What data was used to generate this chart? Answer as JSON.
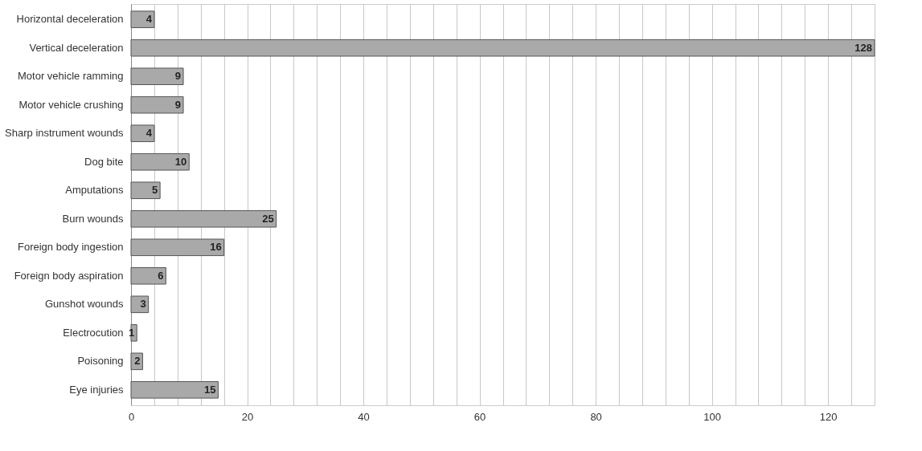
{
  "chart_data": {
    "type": "bar",
    "orientation": "horizontal",
    "categories": [
      "Horizontal deceleration",
      "Vertical deceleration",
      "Motor vehicle ramming",
      "Motor vehicle crushing",
      "Sharp instrument wounds",
      "Dog bite",
      "Amputations",
      "Burn wounds",
      "Foreign body ingestion",
      "Foreign body aspiration",
      "Gunshot wounds",
      "Electrocution",
      "Poisoning",
      "Eye injuries"
    ],
    "values": [
      4,
      128,
      9,
      9,
      4,
      10,
      5,
      25,
      16,
      6,
      3,
      1,
      2,
      15
    ],
    "color": "#a9a9a9",
    "xlim": [
      0,
      128
    ],
    "xticks": [
      0,
      {
        "value": 4,
        "label": null
      },
      {
        "value": 8,
        "label": null
      },
      {
        "value": 12,
        "label": null
      },
      {
        "value": 16,
        "label": null
      },
      20,
      {
        "value": 24,
        "label": null
      },
      {
        "value": 28,
        "label": null
      },
      {
        "value": 32,
        "label": null
      },
      {
        "value": 36,
        "label": null
      },
      40,
      {
        "value": 44,
        "label": null
      },
      {
        "value": 48,
        "label": null
      },
      {
        "value": 52,
        "label": null
      },
      {
        "value": 56,
        "label": null
      },
      60,
      {
        "value": 64,
        "label": null
      },
      {
        "value": 68,
        "label": null
      },
      {
        "value": 72,
        "label": null
      },
      {
        "value": 76,
        "label": null
      },
      80,
      {
        "value": 84,
        "label": null
      },
      {
        "value": 88,
        "label": null
      },
      {
        "value": 92,
        "label": null
      },
      {
        "value": 96,
        "label": null
      },
      100,
      {
        "value": 104,
        "label": null
      },
      {
        "value": 108,
        "label": null
      },
      {
        "value": 112,
        "label": null
      },
      {
        "value": 116,
        "label": null
      },
      120,
      {
        "value": 124,
        "label": null
      },
      {
        "value": 128,
        "label": null
      }
    ],
    "grid": "x",
    "data_labels": true
  }
}
